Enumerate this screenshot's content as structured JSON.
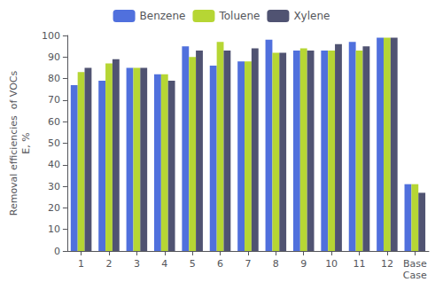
{
  "chart_data": {
    "type": "bar",
    "categories": [
      "1",
      "2",
      "3",
      "4",
      "5",
      "6",
      "7",
      "8",
      "9",
      "10",
      "11",
      "12",
      "Base\nCase"
    ],
    "series": [
      {
        "name": "Benzene",
        "values": [
          77,
          79,
          85,
          82,
          95,
          86,
          88,
          98,
          93,
          93,
          97,
          99,
          31
        ]
      },
      {
        "name": "Toluene",
        "values": [
          83,
          87,
          85,
          82,
          90,
          97,
          88,
          92,
          94,
          93,
          93,
          99,
          31
        ]
      },
      {
        "name": "Xylene",
        "values": [
          85,
          89,
          85,
          79,
          93,
          93,
          94,
          92,
          93,
          96,
          95,
          99,
          27
        ]
      }
    ],
    "ylabel": "Removal efficiencies  of VOCs\nE, %",
    "ylim": [
      0,
      100
    ],
    "yticks": [
      0,
      10,
      20,
      30,
      40,
      50,
      60,
      70,
      80,
      90,
      100
    ],
    "grid": false,
    "legend": "top"
  }
}
